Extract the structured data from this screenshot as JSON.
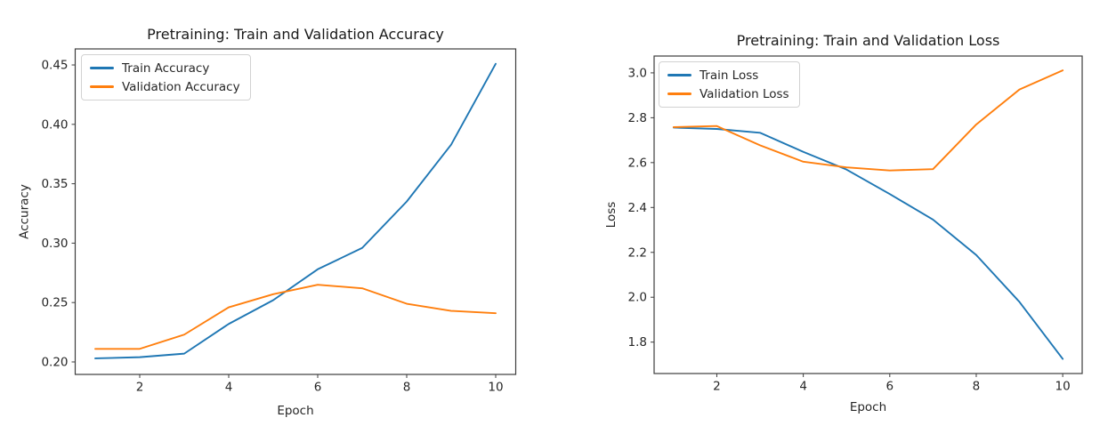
{
  "page": {
    "background": "#ffffff"
  },
  "chart_data": [
    {
      "type": "line",
      "title": "Pretraining: Train and Validation Accuracy",
      "xlabel": "Epoch",
      "ylabel": "Accuracy",
      "x": [
        1,
        2,
        3,
        4,
        5,
        6,
        7,
        8,
        9,
        10
      ],
      "series": [
        {
          "name": "Train Accuracy",
          "color": "#1f77b4",
          "values": [
            0.203,
            0.204,
            0.207,
            0.232,
            0.252,
            0.278,
            0.296,
            0.335,
            0.383,
            0.451
          ]
        },
        {
          "name": "Validation Accuracy",
          "color": "#ff7f0e",
          "values": [
            0.211,
            0.211,
            0.223,
            0.246,
            0.257,
            0.265,
            0.262,
            0.249,
            0.243,
            0.241
          ]
        }
      ],
      "xticks": {
        "values": [
          2,
          4,
          6,
          8,
          10
        ],
        "labels": [
          "2",
          "4",
          "6",
          "8",
          "10"
        ]
      },
      "yticks": {
        "values": [
          0.2,
          0.25,
          0.3,
          0.35,
          0.4,
          0.45
        ],
        "labels": [
          "0.20",
          "0.25",
          "0.30",
          "0.35",
          "0.40",
          "0.45"
        ]
      },
      "xlim": [
        0.55,
        10.45
      ],
      "ylim": [
        0.1895,
        0.4635
      ],
      "grid": false,
      "legend_position": "upper left"
    },
    {
      "type": "line",
      "title": "Pretraining: Train and Validation Loss",
      "xlabel": "Epoch",
      "ylabel": "Loss",
      "x": [
        1,
        2,
        3,
        4,
        5,
        6,
        7,
        8,
        9,
        10
      ],
      "series": [
        {
          "name": "Train Loss",
          "color": "#1f77b4",
          "values": [
            2.756,
            2.75,
            2.733,
            2.648,
            2.569,
            2.46,
            2.346,
            2.188,
            1.979,
            1.725
          ]
        },
        {
          "name": "Validation Loss",
          "color": "#ff7f0e",
          "values": [
            2.758,
            2.763,
            2.677,
            2.604,
            2.579,
            2.565,
            2.571,
            2.77,
            2.926,
            3.011
          ]
        }
      ],
      "xticks": {
        "values": [
          2,
          4,
          6,
          8,
          10
        ],
        "labels": [
          "2",
          "4",
          "6",
          "8",
          "10"
        ]
      },
      "yticks": {
        "values": [
          1.8,
          2.0,
          2.2,
          2.4,
          2.6,
          2.8,
          3.0
        ],
        "labels": [
          "1.8",
          "2.0",
          "2.2",
          "2.4",
          "2.6",
          "2.8",
          "3.0"
        ]
      },
      "xlim": [
        0.55,
        10.45
      ],
      "ylim": [
        1.66,
        3.075
      ],
      "grid": false,
      "legend_position": "upper left"
    }
  ]
}
